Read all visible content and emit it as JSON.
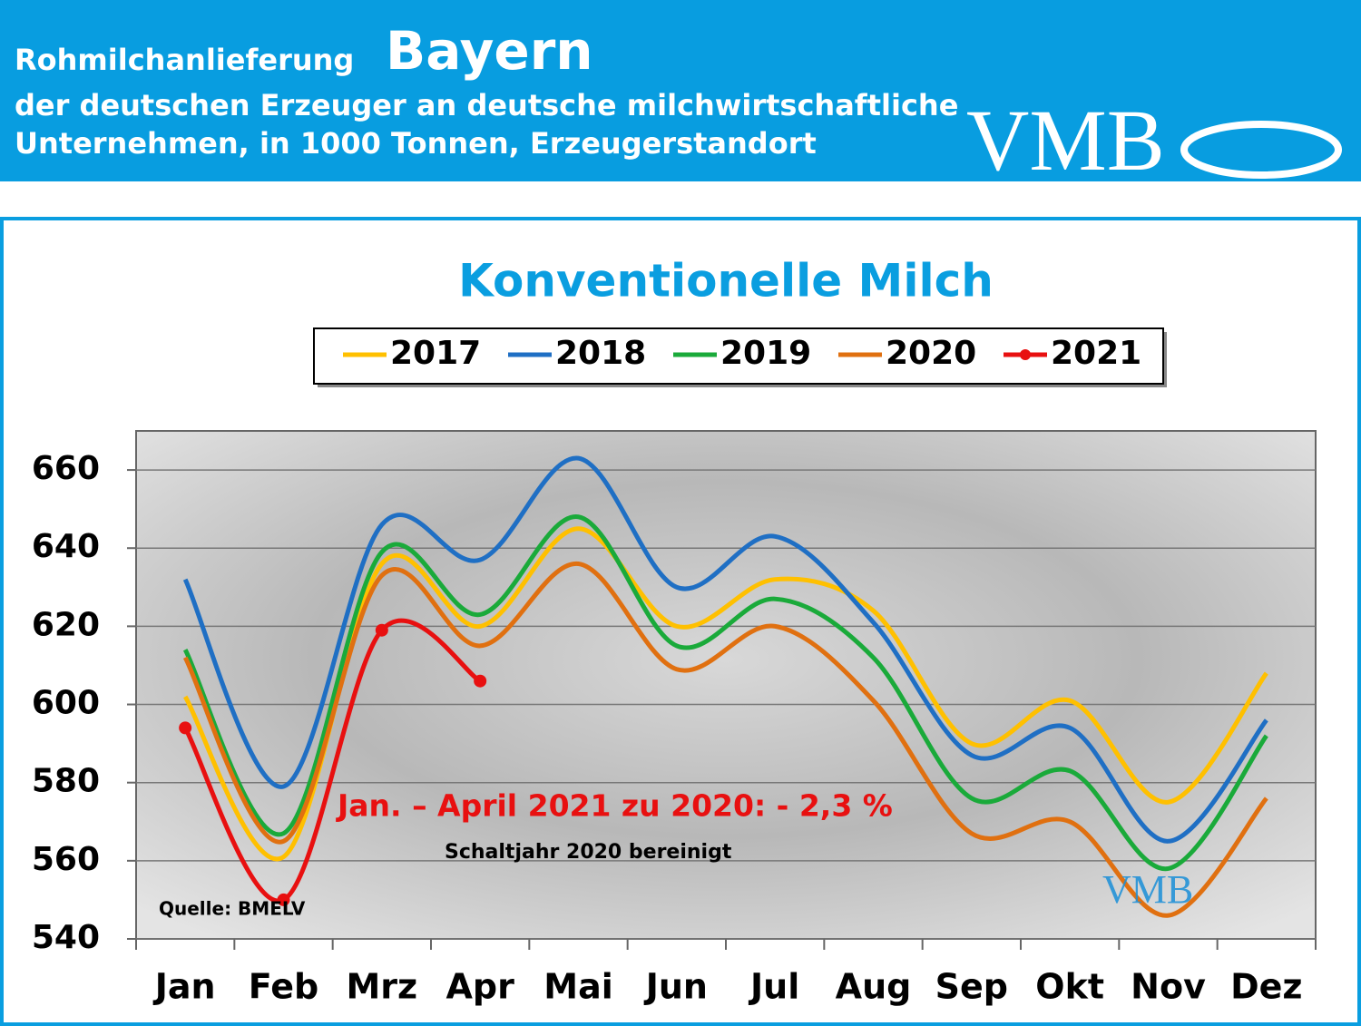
{
  "header": {
    "line1": "Rohmilchanlieferung",
    "highlight": "Bayern",
    "line2": "der deutschen Erzeuger an deutsche milchwirtschaftliche",
    "line3": "Unternehmen, in 1000 Tonnen, Erzeugerstandort",
    "logo": "VMB"
  },
  "chart_data": {
    "type": "line",
    "title": "Konventionelle Milch",
    "categories": [
      "Jan",
      "Feb",
      "Mrz",
      "Apr",
      "Mai",
      "Jun",
      "Jul",
      "Aug",
      "Sep",
      "Okt",
      "Nov",
      "Dez"
    ],
    "series": [
      {
        "name": "2017",
        "color": "#ffc000",
        "values": [
          602,
          561,
          636,
          620,
          645,
          620,
          632,
          624,
          590,
          601,
          575,
          608
        ]
      },
      {
        "name": "2018",
        "color": "#1f6fc4",
        "values": [
          632,
          579,
          646,
          637,
          663,
          630,
          643,
          621,
          587,
          594,
          565,
          596
        ]
      },
      {
        "name": "2019",
        "color": "#1aaa3a",
        "values": [
          614,
          567,
          639,
          623,
          648,
          615,
          627,
          612,
          576,
          583,
          558,
          592
        ]
      },
      {
        "name": "2020",
        "color": "#e07010",
        "values": [
          612,
          565,
          633,
          615,
          636,
          609,
          620,
          601,
          567,
          570,
          546,
          576
        ]
      },
      {
        "name": "2021",
        "color": "#e81010",
        "marker": true,
        "values": [
          594,
          550,
          619,
          606,
          null,
          null,
          null,
          null,
          null,
          null,
          null,
          null
        ]
      }
    ],
    "ylim": [
      540,
      670
    ],
    "yticks": [
      540,
      560,
      580,
      600,
      620,
      640,
      660
    ],
    "grid": true,
    "annotations": [
      "Jan. – April 2021 zu 2020: - 2,3 %",
      "Schaltjahr 2020 bereinigt",
      "Quelle:  BMELV"
    ],
    "watermark": "VMB"
  }
}
